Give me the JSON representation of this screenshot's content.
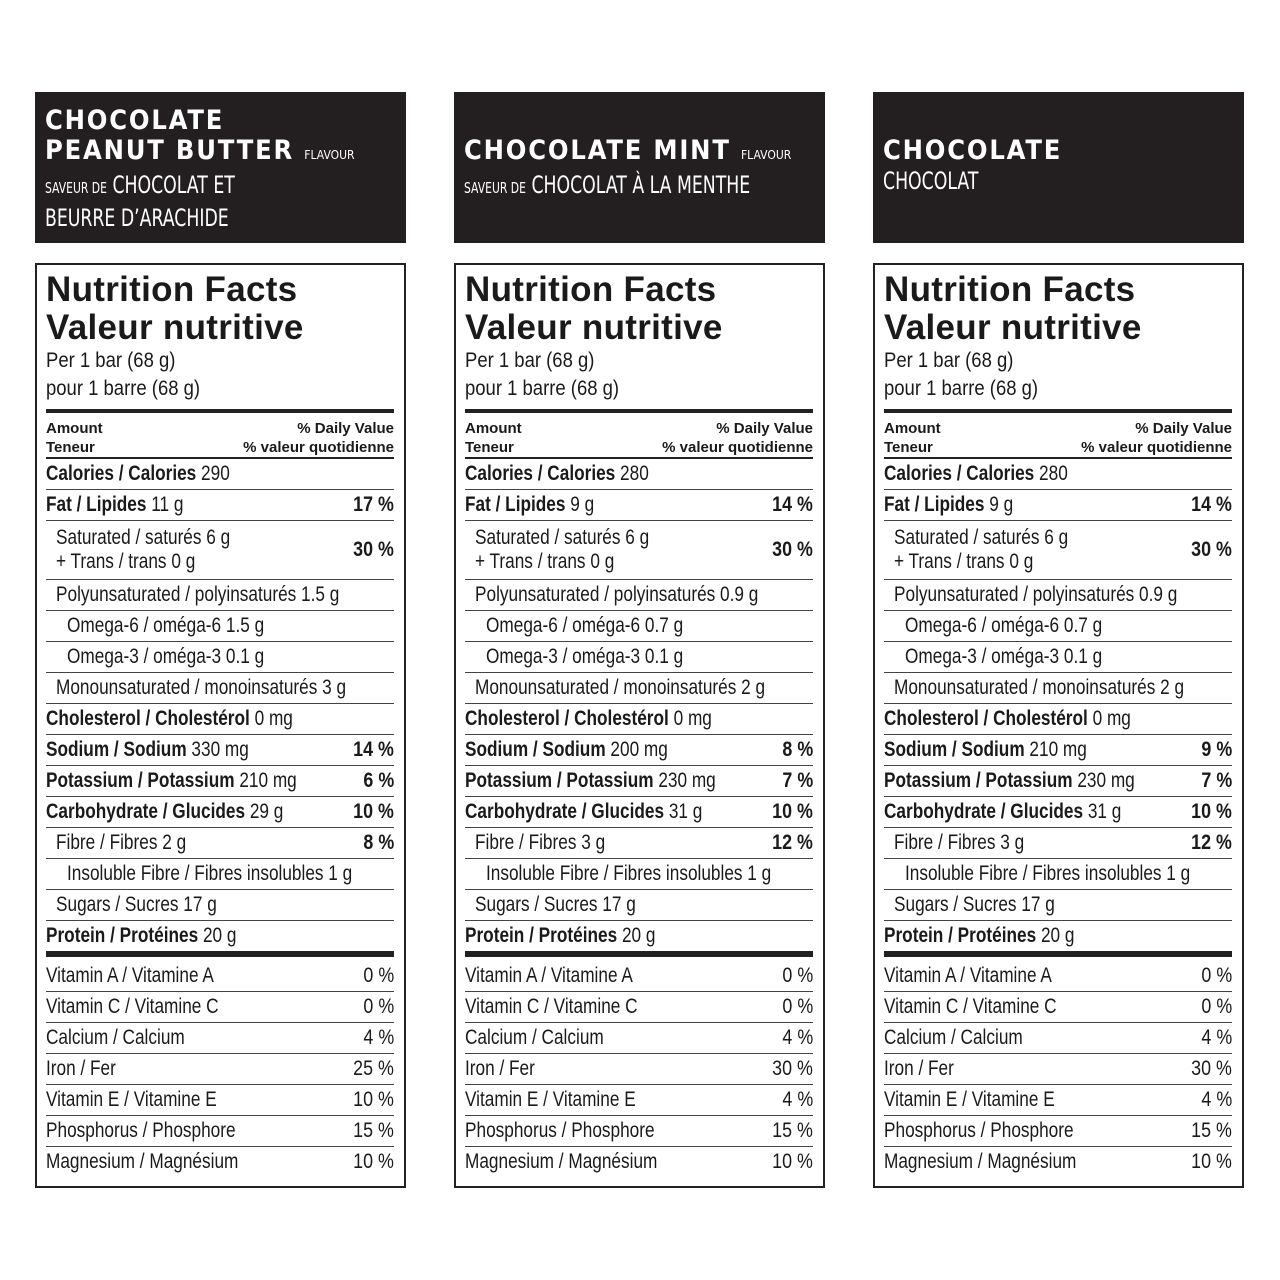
{
  "header_labels": {
    "flavour": "FLAVOUR",
    "saveur_de": "SAVEUR DE"
  },
  "labels": {
    "title_en": "Nutrition Facts",
    "title_fr": "Valeur nutritive",
    "per_en": "Per 1 bar (68 g)",
    "per_fr": "pour 1 barre (68 g)",
    "amount_en": "Amount",
    "amount_fr": "Teneur",
    "dv_en": "% Daily Value",
    "dv_fr": "% valeur quotidienne"
  },
  "products": [
    {
      "name_lines": [
        "CHOCOLATE",
        "PEANUT BUTTER"
      ],
      "has_flavour": true,
      "fr_lines": [
        "CHOCOLAT ET",
        "BEURRE D’ARACHIDE"
      ],
      "has_saveur": true,
      "nutrients": [
        {
          "b": "Calories / Calories",
          "v": "290",
          "dv": "",
          "indent": 0
        },
        {
          "b": "Fat / Lipides",
          "v": "11 g",
          "dv": "17 %",
          "indent": 0
        },
        {
          "b": "",
          "v": "Saturated / saturés 6 g",
          "v2": "+ Trans / trans 0 g",
          "dv": "30 %",
          "indent": 1
        },
        {
          "b": "",
          "v": "Polyunsaturated / polyinsaturés 1.5 g",
          "dv": "",
          "indent": 1
        },
        {
          "b": "",
          "v": "Omega-6 / oméga-6 1.5 g",
          "dv": "",
          "indent": 2
        },
        {
          "b": "",
          "v": "Omega-3 / oméga-3 0.1 g",
          "dv": "",
          "indent": 2
        },
        {
          "b": "",
          "v": "Monounsaturated / monoinsaturés 3 g",
          "dv": "",
          "indent": 1
        },
        {
          "b": "Cholesterol / Cholestérol",
          "v": "0 mg",
          "dv": "",
          "indent": 0
        },
        {
          "b": "Sodium / Sodium",
          "v": "330 mg",
          "dv": "14 %",
          "indent": 0
        },
        {
          "b": "Potassium / Potassium",
          "v": "210 mg",
          "dv": "6 %",
          "indent": 0
        },
        {
          "b": "Carbohydrate / Glucides",
          "v": "29 g",
          "dv": "10 %",
          "indent": 0
        },
        {
          "b": "",
          "v": "Fibre / Fibres 2 g",
          "dv": "8 %",
          "indent": 1
        },
        {
          "b": "",
          "v": "Insoluble Fibre / Fibres insolubles 1 g",
          "dv": "",
          "indent": 2
        },
        {
          "b": "",
          "v": "Sugars / Sucres 17 g",
          "dv": "",
          "indent": 1
        },
        {
          "b": "Protein / Protéines",
          "v": "20 g",
          "dv": "",
          "indent": 0
        }
      ],
      "vitamins": [
        {
          "name": "Vitamin A / Vitamine A",
          "dv": "0 %"
        },
        {
          "name": "Vitamin C / Vitamine C",
          "dv": "0 %"
        },
        {
          "name": "Calcium / Calcium",
          "dv": "4 %"
        },
        {
          "name": "Iron / Fer",
          "dv": "25 %"
        },
        {
          "name": "Vitamin E / Vitamine E",
          "dv": "10 %"
        },
        {
          "name": "Phosphorus / Phosphore",
          "dv": "15 %"
        },
        {
          "name": "Magnesium / Magnésium",
          "dv": "10 %"
        }
      ]
    },
    {
      "name_lines": [
        "CHOCOLATE MINT"
      ],
      "has_flavour": true,
      "fr_lines": [
        "CHOCOLAT À LA MENTHE"
      ],
      "has_saveur": true,
      "nutrients": [
        {
          "b": "Calories / Calories",
          "v": "280",
          "dv": "",
          "indent": 0
        },
        {
          "b": "Fat / Lipides",
          "v": "9 g",
          "dv": "14 %",
          "indent": 0
        },
        {
          "b": "",
          "v": "Saturated / saturés 6 g",
          "v2": "+ Trans / trans 0 g",
          "dv": "30 %",
          "indent": 1
        },
        {
          "b": "",
          "v": "Polyunsaturated / polyinsaturés 0.9 g",
          "dv": "",
          "indent": 1
        },
        {
          "b": "",
          "v": "Omega-6 / oméga-6 0.7 g",
          "dv": "",
          "indent": 2
        },
        {
          "b": "",
          "v": "Omega-3 / oméga-3 0.1 g",
          "dv": "",
          "indent": 2
        },
        {
          "b": "",
          "v": "Monounsaturated / monoinsaturés 2 g",
          "dv": "",
          "indent": 1
        },
        {
          "b": "Cholesterol / Cholestérol",
          "v": "0 mg",
          "dv": "",
          "indent": 0
        },
        {
          "b": "Sodium / Sodium",
          "v": "200 mg",
          "dv": "8 %",
          "indent": 0
        },
        {
          "b": "Potassium / Potassium",
          "v": "230 mg",
          "dv": "7 %",
          "indent": 0
        },
        {
          "b": "Carbohydrate / Glucides",
          "v": "31 g",
          "dv": "10 %",
          "indent": 0
        },
        {
          "b": "",
          "v": "Fibre / Fibres 3 g",
          "dv": "12 %",
          "indent": 1
        },
        {
          "b": "",
          "v": "Insoluble Fibre / Fibres insolubles 1 g",
          "dv": "",
          "indent": 2
        },
        {
          "b": "",
          "v": "Sugars / Sucres 17 g",
          "dv": "",
          "indent": 1
        },
        {
          "b": "Protein / Protéines",
          "v": "20 g",
          "dv": "",
          "indent": 0
        }
      ],
      "vitamins": [
        {
          "name": "Vitamin A / Vitamine A",
          "dv": "0 %"
        },
        {
          "name": "Vitamin C / Vitamine C",
          "dv": "0 %"
        },
        {
          "name": "Calcium / Calcium",
          "dv": "4 %"
        },
        {
          "name": "Iron / Fer",
          "dv": "30 %"
        },
        {
          "name": "Vitamin E / Vitamine E",
          "dv": "4 %"
        },
        {
          "name": "Phosphorus / Phosphore",
          "dv": "15 %"
        },
        {
          "name": "Magnesium / Magnésium",
          "dv": "10 %"
        }
      ]
    },
    {
      "name_lines": [
        "CHOCOLATE"
      ],
      "has_flavour": false,
      "fr_lines": [
        "CHOCOLAT"
      ],
      "has_saveur": false,
      "nutrients": [
        {
          "b": "Calories / Calories",
          "v": "280",
          "dv": "",
          "indent": 0
        },
        {
          "b": "Fat / Lipides",
          "v": "9 g",
          "dv": "14 %",
          "indent": 0
        },
        {
          "b": "",
          "v": "Saturated / saturés 6 g",
          "v2": "+ Trans / trans 0 g",
          "dv": "30 %",
          "indent": 1
        },
        {
          "b": "",
          "v": "Polyunsaturated / polyinsaturés 0.9 g",
          "dv": "",
          "indent": 1
        },
        {
          "b": "",
          "v": "Omega-6 / oméga-6 0.7 g",
          "dv": "",
          "indent": 2
        },
        {
          "b": "",
          "v": "Omega-3 / oméga-3 0.1 g",
          "dv": "",
          "indent": 2
        },
        {
          "b": "",
          "v": "Monounsaturated / monoinsaturés 2 g",
          "dv": "",
          "indent": 1
        },
        {
          "b": "Cholesterol / Cholestérol",
          "v": "0 mg",
          "dv": "",
          "indent": 0
        },
        {
          "b": "Sodium / Sodium",
          "v": "210 mg",
          "dv": "9 %",
          "indent": 0
        },
        {
          "b": "Potassium / Potassium",
          "v": "230 mg",
          "dv": "7 %",
          "indent": 0
        },
        {
          "b": "Carbohydrate / Glucides",
          "v": "31 g",
          "dv": "10 %",
          "indent": 0
        },
        {
          "b": "",
          "v": "Fibre / Fibres 3 g",
          "dv": "12 %",
          "indent": 1
        },
        {
          "b": "",
          "v": "Insoluble Fibre / Fibres insolubles 1 g",
          "dv": "",
          "indent": 2
        },
        {
          "b": "",
          "v": "Sugars / Sucres 17 g",
          "dv": "",
          "indent": 1
        },
        {
          "b": "Protein / Protéines",
          "v": "20 g",
          "dv": "",
          "indent": 0
        }
      ],
      "vitamins": [
        {
          "name": "Vitamin A / Vitamine A",
          "dv": "0 %"
        },
        {
          "name": "Vitamin C / Vitamine C",
          "dv": "0 %"
        },
        {
          "name": "Calcium / Calcium",
          "dv": "4 %"
        },
        {
          "name": "Iron / Fer",
          "dv": "30 %"
        },
        {
          "name": "Vitamin E / Vitamine E",
          "dv": "4 %"
        },
        {
          "name": "Phosphorus / Phosphore",
          "dv": "15 %"
        },
        {
          "name": "Magnesium / Magnésium",
          "dv": "10 %"
        }
      ]
    }
  ]
}
